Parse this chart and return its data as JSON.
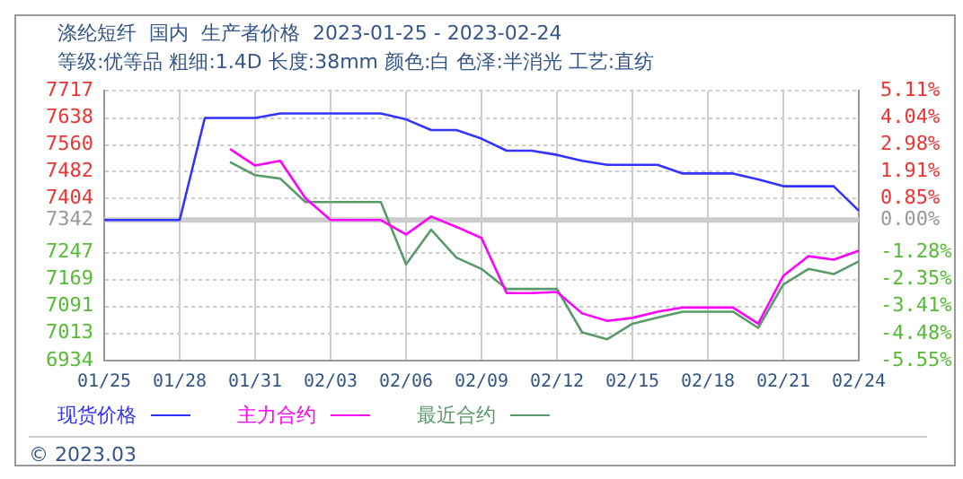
{
  "chart_data": {
    "type": "line",
    "title": "涤纶短纤  国内  生产者价格  2023-01-25 - 2023-02-24",
    "subtitle": "等级:优等品 粗细:1.4D 长度:38mm 颜色:白 色泽:半消光 工艺:直纺",
    "categories": [
      "01/25",
      null,
      null,
      "01/28",
      null,
      null,
      "01/31",
      null,
      null,
      "02/03",
      null,
      null,
      "02/06",
      null,
      null,
      "02/09",
      null,
      null,
      "02/12",
      null,
      null,
      "02/15",
      null,
      null,
      "02/18",
      null,
      null,
      "02/21",
      null,
      null,
      "02/24"
    ],
    "series": [
      {
        "name": "现货价格",
        "color": "#3333ff",
        "values": [
          7342,
          7342,
          7342,
          7342,
          7638,
          7638,
          7638,
          7651,
          7651,
          7651,
          7651,
          7651,
          7634,
          7603,
          7603,
          7578,
          7543,
          7543,
          7531,
          7514,
          7502,
          7502,
          7502,
          7477,
          7477,
          7477,
          7460,
          7440,
          7440,
          7440,
          7369
        ]
      },
      {
        "name": "主力合约",
        "color": "#ff00ff",
        "values": [
          null,
          null,
          null,
          null,
          null,
          7548,
          7500,
          7514,
          7405,
          7342,
          7342,
          7342,
          7300,
          7352,
          7322,
          7290,
          7130,
          7130,
          7133,
          7071,
          7049,
          7058,
          7076,
          7088,
          7088,
          7088,
          7041,
          7180,
          7237,
          7227,
          7253
        ]
      },
      {
        "name": "最近合约",
        "color": "#5a9a6a",
        "values": [
          null,
          null,
          null,
          null,
          null,
          7510,
          7472,
          7462,
          7394,
          7394,
          7394,
          7394,
          7213,
          7314,
          7233,
          7200,
          7142,
          7142,
          7142,
          7016,
          6996,
          7041,
          7059,
          7076,
          7076,
          7076,
          7029,
          7155,
          7200,
          7185,
          7222
        ]
      }
    ],
    "ylim": [
      6934,
      7717
    ],
    "yticks": [
      6934,
      7013,
      7091,
      7169,
      7247,
      7342,
      7404,
      7482,
      7560,
      7638,
      7717
    ],
    "y2lim": [
      -5.55,
      5.11
    ],
    "y2ticks": [
      {
        "value": -5.55,
        "label": "-5.55%"
      },
      {
        "value": -4.48,
        "label": "-4.48%"
      },
      {
        "value": -3.41,
        "label": "-3.41%"
      },
      {
        "value": -2.35,
        "label": "-2.35%"
      },
      {
        "value": -1.28,
        "label": "-1.28%"
      },
      {
        "value": 0,
        "label": "0.00%"
      },
      {
        "value": 0.85,
        "label": "0.85%"
      },
      {
        "value": 1.91,
        "label": "1.91%"
      },
      {
        "value": 2.98,
        "label": "2.98%"
      },
      {
        "value": 4.04,
        "label": "4.04%"
      },
      {
        "value": 5.11,
        "label": "5.11%"
      }
    ],
    "ref_lines": [
      {
        "axis": "y",
        "value": 7342,
        "color": "#cccccc"
      }
    ],
    "grid": true,
    "legend": "bottom",
    "marker": "none",
    "line_style": "solid",
    "annotations": [
      "© 2023.03"
    ]
  }
}
